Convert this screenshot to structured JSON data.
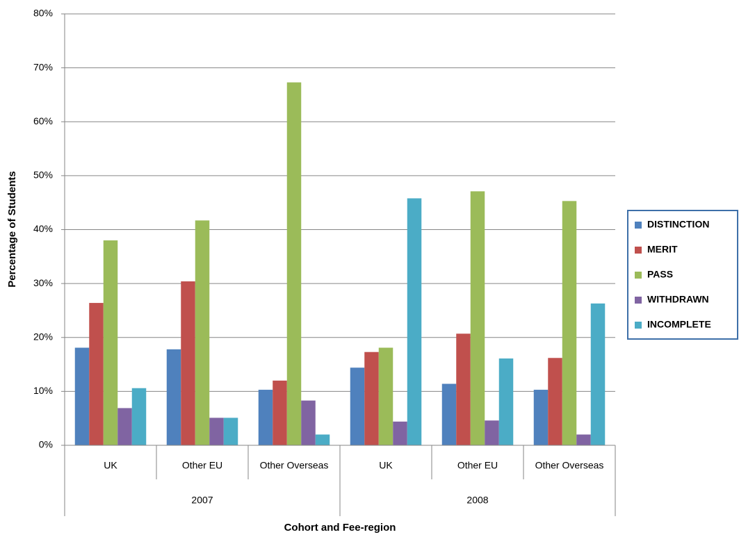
{
  "chart_data": {
    "type": "bar",
    "x_label": "Cohort and Fee-region",
    "y_label": "Percentage of Students",
    "categories": [
      "UK",
      "Other EU",
      "Other Overseas",
      "UK",
      "Other EU",
      "Other Overseas"
    ],
    "category_groups": [
      "2007",
      "2008"
    ],
    "series": [
      {
        "name": "DISTINCTION",
        "color": "#4f81bd",
        "values": [
          18.1,
          17.8,
          10.3,
          14.4,
          11.4,
          10.3
        ]
      },
      {
        "name": "MERIT",
        "color": "#c0504d",
        "values": [
          26.4,
          30.4,
          12.0,
          17.3,
          20.7,
          16.2
        ]
      },
      {
        "name": "PASS",
        "color": "#9bbb59",
        "values": [
          38.0,
          41.7,
          67.3,
          18.1,
          47.1,
          45.3
        ]
      },
      {
        "name": "WITHDRAWN",
        "color": "#8064a2",
        "values": [
          6.9,
          5.1,
          8.3,
          4.4,
          4.6,
          2.0
        ]
      },
      {
        "name": "INCOMPLETE",
        "color": "#4bacc6",
        "values": [
          10.6,
          5.1,
          2.0,
          45.8,
          16.1,
          26.3
        ]
      }
    ],
    "ylim": [
      0,
      80
    ],
    "yticks": [
      {
        "value": 0,
        "label": "0%"
      },
      {
        "value": 10,
        "label": "10%"
      },
      {
        "value": 20,
        "label": "20%"
      },
      {
        "value": 30,
        "label": "30%"
      },
      {
        "value": 40,
        "label": "40%"
      },
      {
        "value": 50,
        "label": "50%"
      },
      {
        "value": 60,
        "label": "60%"
      },
      {
        "value": 70,
        "label": "70%"
      },
      {
        "value": 80,
        "label": "80%"
      }
    ],
    "grid": true,
    "legend": "right"
  }
}
